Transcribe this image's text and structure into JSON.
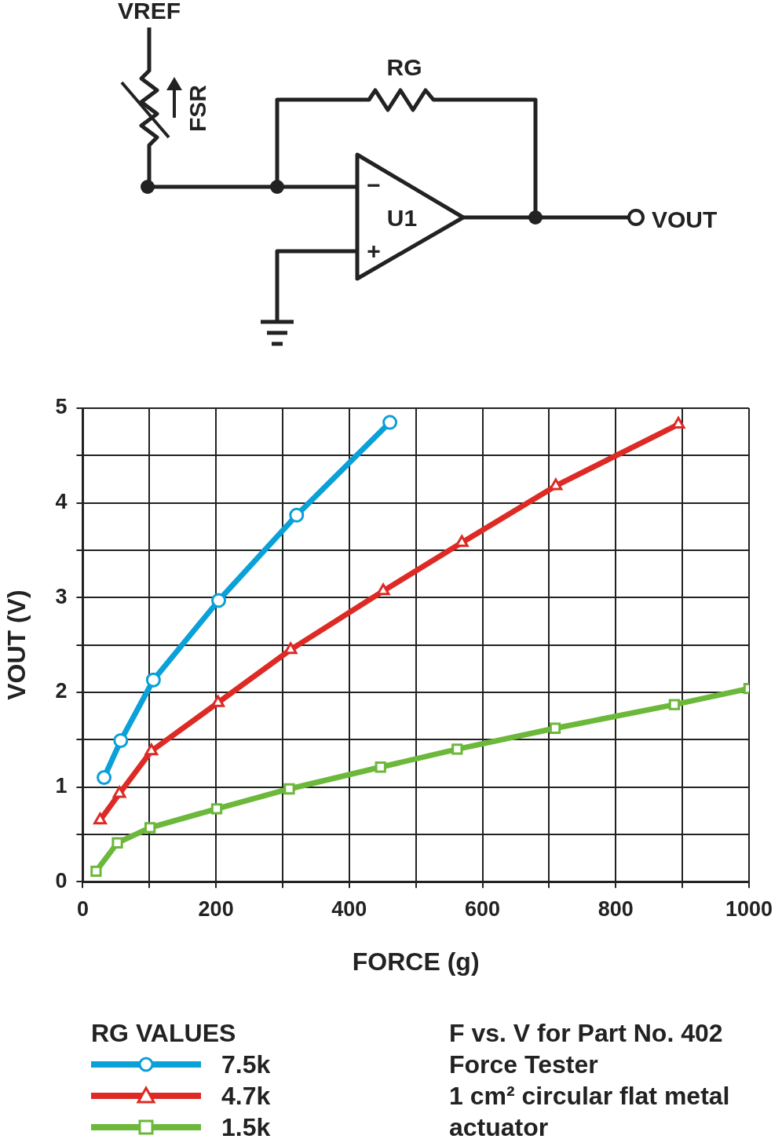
{
  "chart_data": {
    "type": "line",
    "xlabel": "FORCE (g)",
    "ylabel": "VOUT (V)",
    "legend_title": "RG VALUES",
    "legend": "bottom left",
    "grid": true,
    "xlim": [
      0,
      1000
    ],
    "ylim": [
      0,
      5
    ],
    "xticks": [
      0,
      {
        "value": 100,
        "label": null
      },
      200,
      {
        "value": 300,
        "label": null
      },
      400,
      {
        "value": 500,
        "label": null
      },
      600,
      {
        "value": 700,
        "label": null
      },
      800,
      {
        "value": 900,
        "label": null
      },
      1000
    ],
    "yticks": [
      0,
      {
        "value": 0.5,
        "label": null
      },
      1,
      {
        "value": 1.5,
        "label": null
      },
      2,
      {
        "value": 2.5,
        "label": null
      },
      3,
      {
        "value": 3.5,
        "label": null
      },
      4,
      {
        "value": 4.5,
        "label": null
      },
      5
    ],
    "series": [
      {
        "name": "7.5k",
        "color": "#0aa0d8",
        "marker": "circle",
        "x": [
          32,
          57,
          106,
          204,
          321,
          461
        ],
        "values": [
          1.1,
          1.49,
          2.13,
          2.97,
          3.87,
          4.85
        ]
      },
      {
        "name": "4.7k",
        "color": "#dd2a25",
        "marker": "triangle",
        "x": [
          26,
          55,
          103,
          203,
          312,
          451,
          569,
          710,
          894
        ],
        "values": [
          0.65,
          0.93,
          1.38,
          1.89,
          2.45,
          3.07,
          3.58,
          4.18,
          4.83
        ]
      },
      {
        "name": "1.5k",
        "color": "#6cb83a",
        "marker": "square",
        "x": [
          20,
          52,
          101,
          201,
          310,
          447,
          562,
          709,
          888,
          1000
        ],
        "values": [
          0.11,
          0.41,
          0.57,
          0.77,
          0.98,
          1.21,
          1.4,
          1.62,
          1.87,
          2.04
        ]
      }
    ],
    "annotations": [
      "F vs. V for Part No. 402",
      "Force Tester",
      "1 cm² circular flat metal actuator",
      "VREF",
      "RG",
      "FSR",
      "U1",
      "VOUT",
      "−",
      "+"
    ]
  }
}
